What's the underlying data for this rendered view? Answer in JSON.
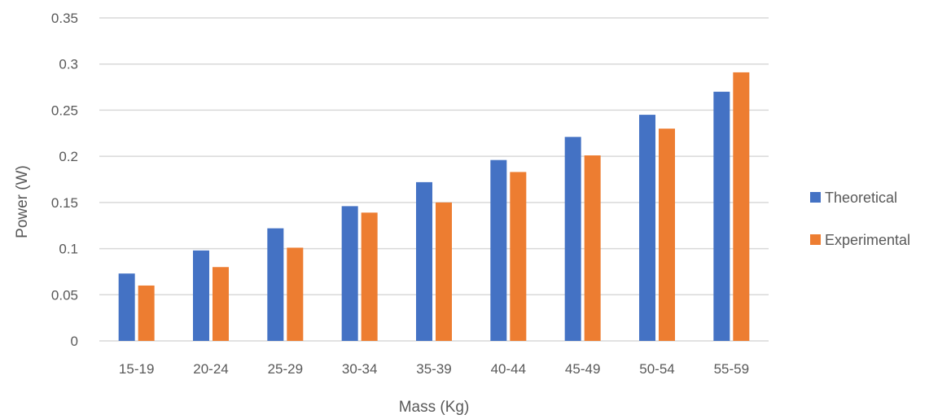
{
  "chart_data": {
    "type": "bar",
    "title": "",
    "xlabel": "Mass (Kg)",
    "ylabel": "Power (W)",
    "categories": [
      "15-19",
      "20-24",
      "25-29",
      "30-34",
      "35-39",
      "40-44",
      "45-49",
      "50-54",
      "55-59"
    ],
    "series": [
      {
        "name": "Theoretical",
        "color": "#4472C4",
        "values": [
          0.073,
          0.098,
          0.122,
          0.146,
          0.172,
          0.196,
          0.221,
          0.245,
          0.27
        ]
      },
      {
        "name": "Experimental",
        "color": "#ED7D31",
        "values": [
          0.06,
          0.08,
          0.101,
          0.139,
          0.15,
          0.183,
          0.201,
          0.23,
          0.291
        ]
      }
    ],
    "ylim": [
      0,
      0.35
    ],
    "yticks": [
      "0",
      "0.05",
      "0.1",
      "0.15",
      "0.2",
      "0.25",
      "0.3",
      "0.35"
    ],
    "grid": true,
    "legend_position": "right"
  }
}
